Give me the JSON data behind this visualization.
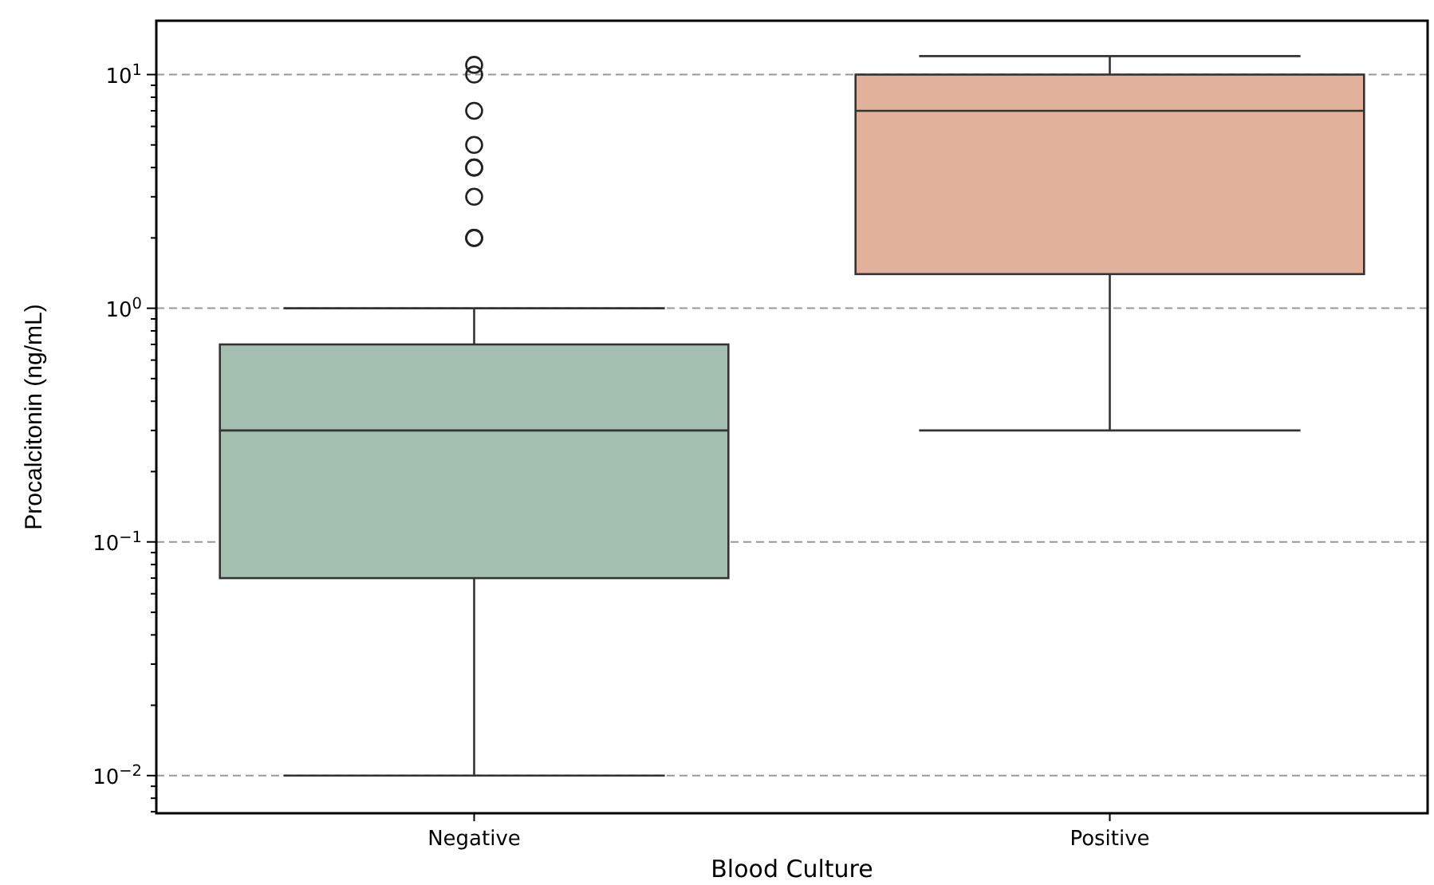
{
  "chart_data": {
    "type": "box",
    "xlabel": "Blood Culture",
    "ylabel": "Procalcitonin (ng/mL)",
    "categories": [
      "Negative",
      "Positive"
    ],
    "colors": [
      "#a3bfb0",
      "#e2b19c"
    ],
    "boxes": [
      {
        "low": 0.01,
        "q1": 0.07,
        "median": 0.3,
        "q3": 0.7,
        "high": 1,
        "outliers": [
          2,
          2,
          3,
          4,
          4,
          5,
          7,
          10,
          11
        ]
      },
      {
        "low": 0.3,
        "q1": 1.4,
        "median": 7,
        "q3": 10,
        "high": 12
      }
    ],
    "log": true,
    "ylim": [
      0.0069,
      17
    ],
    "yticks": [
      {
        "value": 0.01,
        "label": "10$^{−2}$"
      },
      {
        "value": 0.1,
        "label": "10$^{−1}$"
      },
      {
        "value": 1,
        "label": "10$^{0}$"
      },
      {
        "value": 10,
        "label": "10$^{1}$"
      },
      {
        "value": 0.007,
        "label": null
      },
      {
        "value": 0.008,
        "label": null
      },
      {
        "value": 0.009,
        "label": null
      },
      {
        "value": 0.02,
        "label": null
      },
      {
        "value": 0.03,
        "label": null
      },
      {
        "value": 0.04,
        "label": null
      },
      {
        "value": 0.05,
        "label": null
      },
      {
        "value": 0.06,
        "label": null
      },
      {
        "value": 0.07,
        "label": null
      },
      {
        "value": 0.08,
        "label": null
      },
      {
        "value": 0.09,
        "label": null
      },
      {
        "value": 0.2,
        "label": null
      },
      {
        "value": 0.3,
        "label": null
      },
      {
        "value": 0.4,
        "label": null
      },
      {
        "value": 0.5,
        "label": null
      },
      {
        "value": 0.6,
        "label": null
      },
      {
        "value": 0.7,
        "label": null
      },
      {
        "value": 0.8,
        "label": null
      },
      {
        "value": 0.9,
        "label": null
      },
      {
        "value": 2,
        "label": null
      },
      {
        "value": 3,
        "label": null
      },
      {
        "value": 4,
        "label": null
      },
      {
        "value": 5,
        "label": null
      },
      {
        "value": 6,
        "label": null
      },
      {
        "value": 7,
        "label": null
      },
      {
        "value": 8,
        "label": null
      },
      {
        "value": 9,
        "label": null
      }
    ],
    "grid": "y"
  }
}
